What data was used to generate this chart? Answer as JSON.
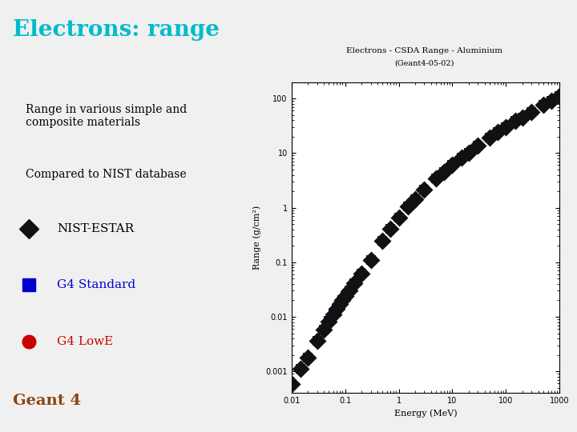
{
  "slide_title": "Electrons: range",
  "slide_title_color": "#00BBCC",
  "slide_bg": "#F0F0F0",
  "text1": "Range in various simple and\ncomposite materials",
  "text3": "Compared to NIST database",
  "legend_items": [
    {
      "label": "NIST-ESTAR",
      "color": "#111111",
      "marker": "D"
    },
    {
      "label": "G4 Standard",
      "color": "#0000CC",
      "marker": "s"
    },
    {
      "label": "G4 LowE",
      "color": "#CC0000",
      "marker": "o"
    }
  ],
  "geant4_text": "Geant 4",
  "geant4_color": "#8B4513",
  "plot_title1": "Electrons - CSDA Range - Aluminium",
  "plot_title2": "(Geant4-05-02)",
  "plot_xlabel": "Energy (MeV)",
  "plot_ylabel": "Range (g/cm²)",
  "plot_xlim": [
    0.01,
    1000
  ],
  "plot_ylim": [
    0.0004,
    200
  ],
  "energy_mev": [
    0.01,
    0.015,
    0.02,
    0.03,
    0.04,
    0.05,
    0.06,
    0.07,
    0.08,
    0.09,
    0.1,
    0.12,
    0.15,
    0.2,
    0.3,
    0.5,
    0.7,
    1.0,
    1.5,
    2.0,
    3.0,
    5.0,
    7.0,
    10.0,
    15.0,
    20.0,
    30.0,
    50.0,
    70.0,
    100.0,
    150.0,
    200.0,
    300.0,
    500.0,
    700.0,
    1000.0
  ],
  "range_nist": [
    0.00058,
    0.0011,
    0.0018,
    0.0036,
    0.0058,
    0.0083,
    0.0111,
    0.0141,
    0.0172,
    0.0205,
    0.0238,
    0.0306,
    0.0419,
    0.0624,
    0.11,
    0.249,
    0.409,
    0.662,
    1.06,
    1.43,
    2.12,
    3.39,
    4.51,
    6.02,
    8.27,
    10.1,
    13.5,
    19.3,
    24.0,
    30.2,
    38.5,
    45.0,
    57.0,
    76.0,
    91.0,
    110.0
  ],
  "nist_color": "#111111",
  "nist_marker": "D",
  "nist_marker_size": 6,
  "g4std_color": "#0000CC",
  "g4std_marker": "s",
  "g4std_marker_size": 5,
  "g4lowe_color": "#CC0000",
  "g4lowe_marker": "o",
  "g4lowe_marker_size": 4,
  "text_color": "#000000",
  "title_fontsize": 20,
  "body_fontsize": 10,
  "legend_fontsize": 11,
  "geant4_fontsize": 14
}
